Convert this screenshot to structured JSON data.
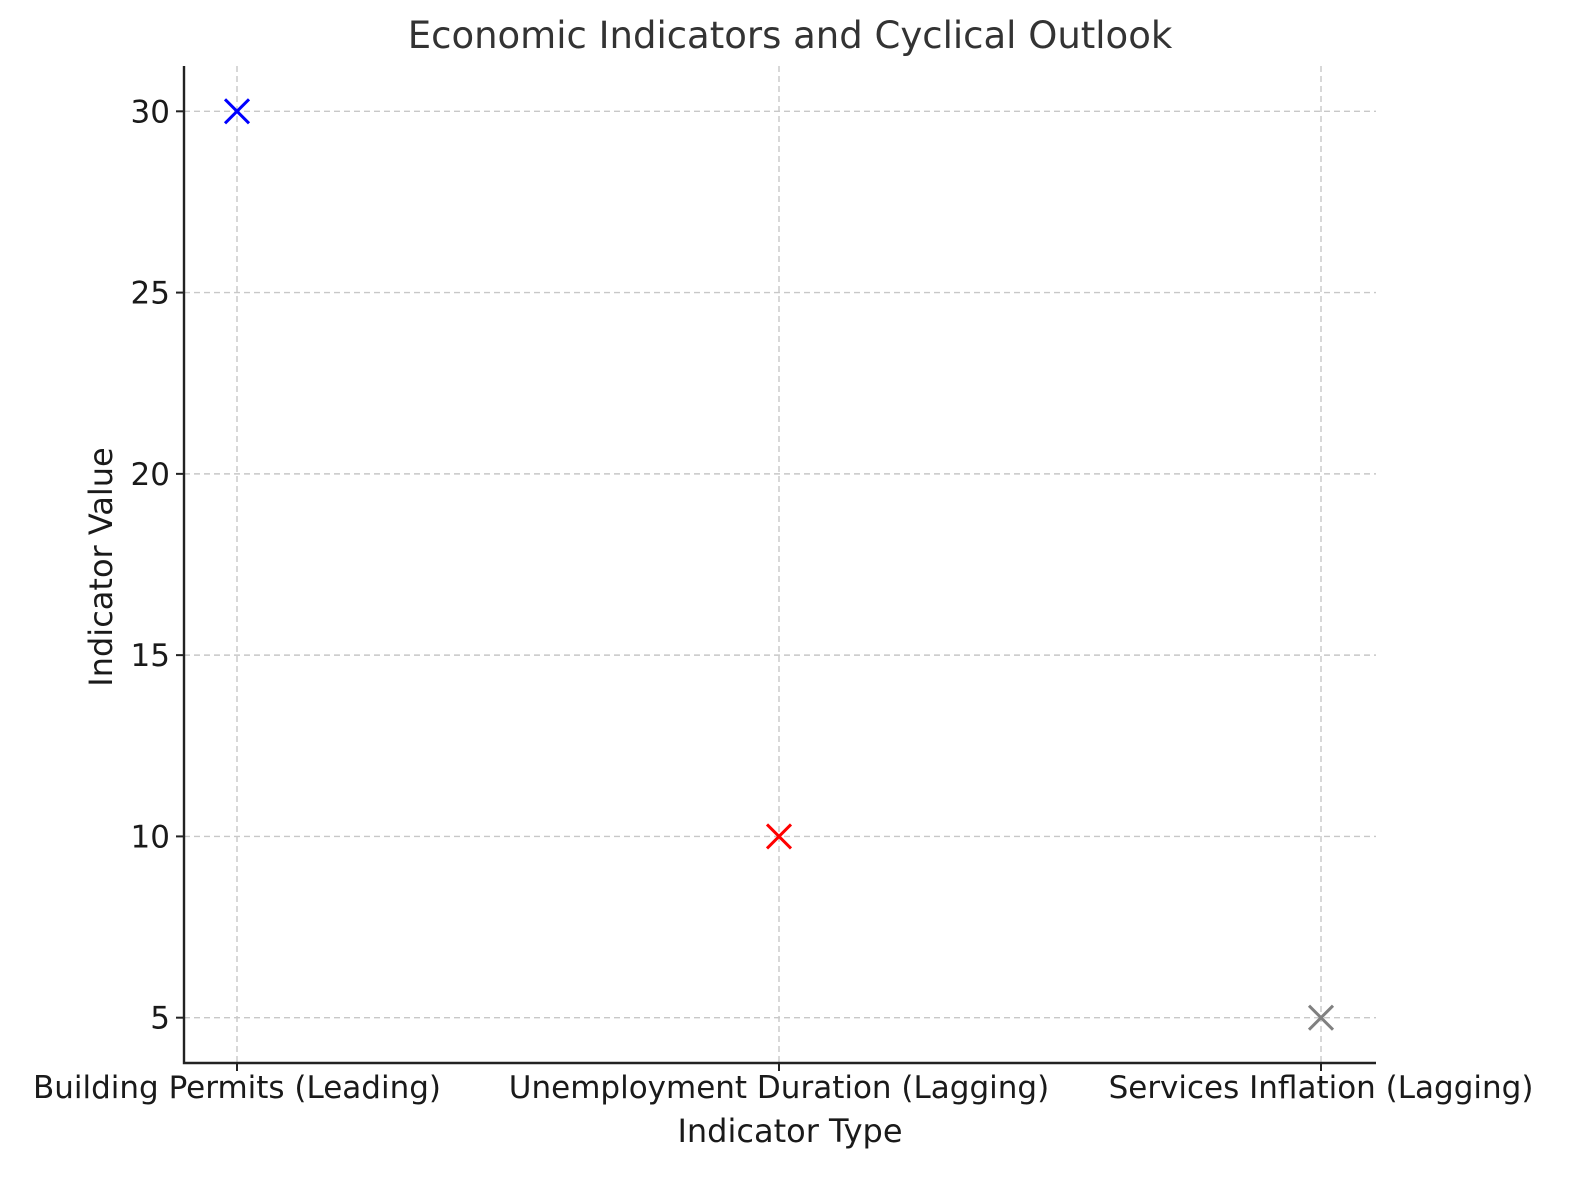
{
  "chart_data": {
    "type": "scatter",
    "title": "Economic Indicators and Cyclical Outlook",
    "xlabel": "Indicator Type",
    "ylabel": "Indicator Value",
    "categories": [
      "Building Permits (Leading)",
      "Unemployment Duration (Lagging)",
      "Services Inflation (Lagging)"
    ],
    "points": [
      {
        "category": "Building Permits (Leading)",
        "value": 30,
        "color": "#0000ff",
        "marker": "x"
      },
      {
        "category": "Unemployment Duration (Lagging)",
        "value": 10,
        "color": "#ff0000",
        "marker": "x"
      },
      {
        "category": "Services Inflation (Lagging)",
        "value": 5,
        "color": "#808080",
        "marker": "x"
      }
    ],
    "yticks": [
      5,
      10,
      15,
      20,
      25,
      30
    ],
    "ylim": [
      3.75,
      31.25
    ],
    "grid": true,
    "legend": "none"
  }
}
